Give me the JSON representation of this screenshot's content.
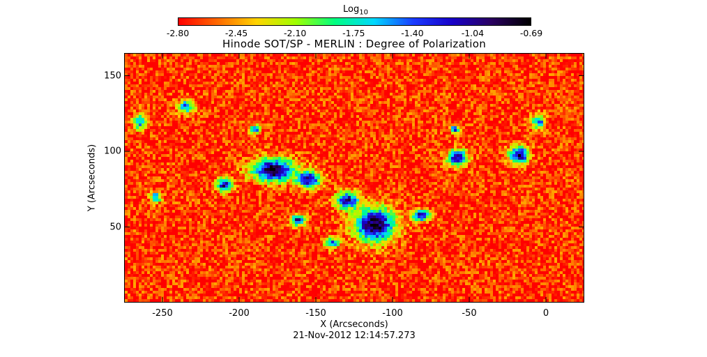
{
  "chart_data": {
    "type": "heatmap",
    "title": "Hinode SOT/SP - MERLIN : Degree of Polarization",
    "xlabel": "X (Arcseconds)",
    "ylabel": "Y (Arcseconds)",
    "footer_timestamp": "21-Nov-2012 12:14:57.273",
    "xlim": [
      -275,
      25
    ],
    "ylim": [
      0,
      165
    ],
    "x_ticks": [
      "-250",
      "-200",
      "-150",
      "-100",
      "-50",
      "0"
    ],
    "x_tick_values": [
      -250,
      -200,
      -150,
      -100,
      -50,
      0
    ],
    "y_ticks": [
      "50",
      "100",
      "150"
    ],
    "y_tick_values": [
      50,
      100,
      150
    ],
    "colorbar": {
      "label": "Log",
      "label_subscript": "10",
      "ticks": [
        "-2.80",
        "-2.45",
        "-2.10",
        "-1.75",
        "-1.40",
        "-1.04",
        "-0.69"
      ],
      "tick_values": [
        -2.8,
        -2.45,
        -2.1,
        -1.75,
        -1.4,
        -1.04,
        -0.69
      ],
      "range": [
        -2.8,
        -0.69
      ],
      "colors": [
        "#ff0000",
        "#ff6a00",
        "#ffd400",
        "#a0ff00",
        "#00ff80",
        "#00d8ff",
        "#1a3cff",
        "#1800c8",
        "#2a0060",
        "#000000"
      ]
    },
    "background_level": -2.7,
    "regions": [
      {
        "x": -178,
        "y": 88,
        "rx": 15,
        "ry": 8,
        "level": -0.72
      },
      {
        "x": -155,
        "y": 82,
        "rx": 8,
        "ry": 6,
        "level": -0.95
      },
      {
        "x": -112,
        "y": 52,
        "rx": 14,
        "ry": 12,
        "level": -0.75
      },
      {
        "x": -130,
        "y": 68,
        "rx": 8,
        "ry": 6,
        "level": -1.0
      },
      {
        "x": -210,
        "y": 78,
        "rx": 5,
        "ry": 5,
        "level": -1.0
      },
      {
        "x": -162,
        "y": 55,
        "rx": 5,
        "ry": 4,
        "level": -1.05
      },
      {
        "x": -82,
        "y": 58,
        "rx": 6,
        "ry": 4,
        "level": -1.05
      },
      {
        "x": -58,
        "y": 96,
        "rx": 7,
        "ry": 6,
        "level": -1.0
      },
      {
        "x": -18,
        "y": 98,
        "rx": 7,
        "ry": 6,
        "level": -0.9
      },
      {
        "x": -60,
        "y": 115,
        "rx": 3,
        "ry": 3,
        "level": -1.2
      },
      {
        "x": -235,
        "y": 130,
        "rx": 6,
        "ry": 5,
        "level": -1.45
      },
      {
        "x": -265,
        "y": 120,
        "rx": 5,
        "ry": 6,
        "level": -1.55
      },
      {
        "x": -255,
        "y": 70,
        "rx": 4,
        "ry": 4,
        "level": -1.5
      },
      {
        "x": -5,
        "y": 120,
        "rx": 5,
        "ry": 5,
        "level": -1.5
      },
      {
        "x": -140,
        "y": 40,
        "rx": 5,
        "ry": 4,
        "level": -1.35
      },
      {
        "x": -190,
        "y": 115,
        "rx": 4,
        "ry": 3,
        "level": -1.45
      }
    ],
    "enhancements": [
      {
        "x": -145,
        "y": 75,
        "rx": 55,
        "ry": 35,
        "level": -1.8
      },
      {
        "x": -180,
        "y": 88,
        "rx": 30,
        "ry": 18,
        "level": -1.55
      },
      {
        "x": -108,
        "y": 55,
        "rx": 28,
        "ry": 22,
        "level": -1.5
      },
      {
        "x": -40,
        "y": 97,
        "rx": 45,
        "ry": 22,
        "level": -2.05
      },
      {
        "x": -210,
        "y": 80,
        "rx": 14,
        "ry": 12,
        "level": -1.85
      },
      {
        "x": -240,
        "y": 130,
        "rx": 25,
        "ry": 25,
        "level": -2.2
      },
      {
        "x": -265,
        "y": 110,
        "rx": 15,
        "ry": 35,
        "level": -2.2
      },
      {
        "x": 15,
        "y": 60,
        "rx": 12,
        "ry": 30,
        "level": -2.25
      },
      {
        "x": -130,
        "y": 120,
        "rx": 40,
        "ry": 20,
        "level": -2.25
      },
      {
        "x": -70,
        "y": 40,
        "rx": 20,
        "ry": 15,
        "level": -2.25
      }
    ]
  }
}
